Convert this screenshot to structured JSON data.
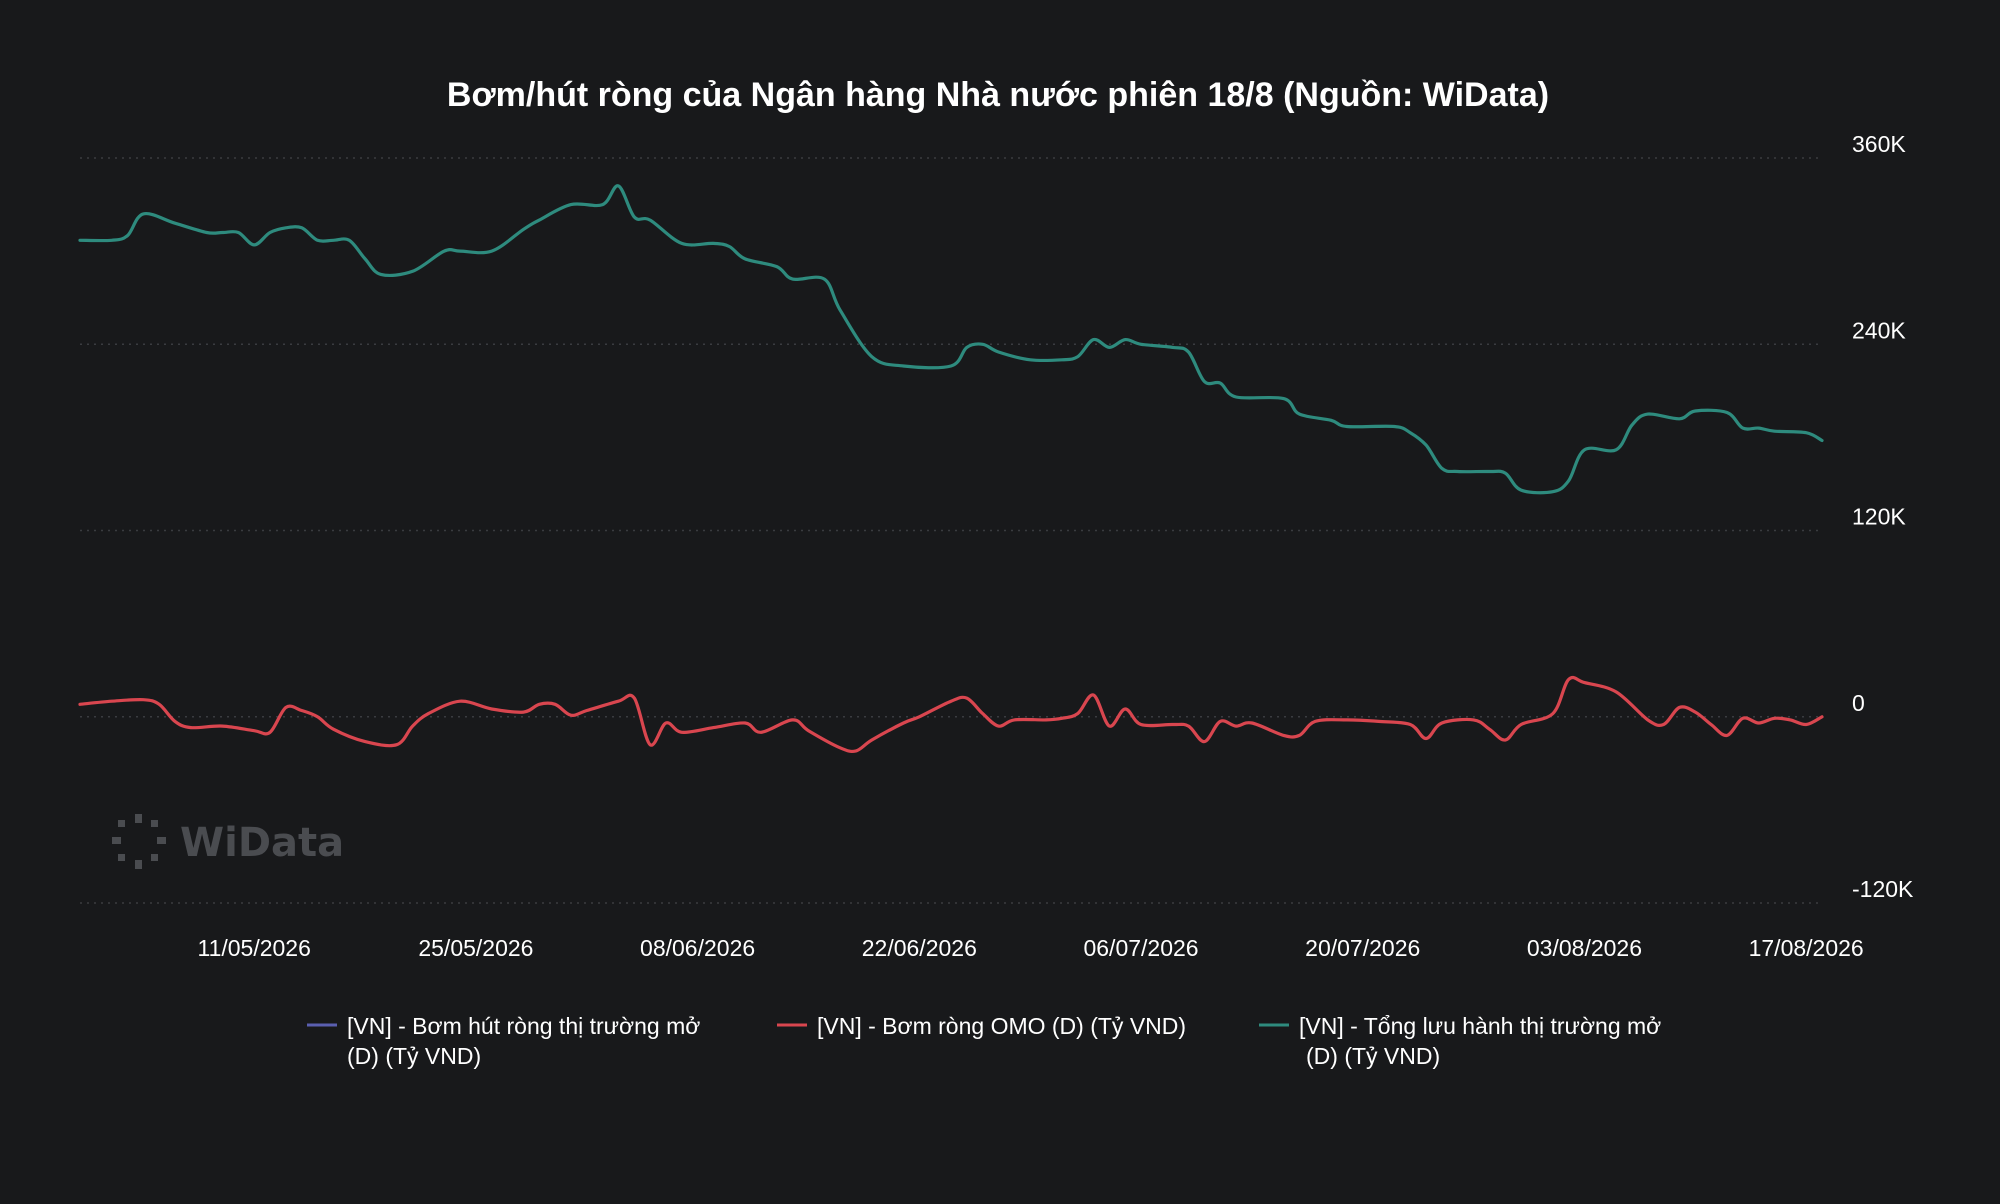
{
  "chart_data": {
    "type": "line",
    "title": "Bơm/hút ròng của Ngân hàng Nhà nước phiên 18/8 (Nguồn: WiData)",
    "xlabel": "",
    "ylabel": "",
    "x_range": [
      "2026-04-30",
      "2026-08-18"
    ],
    "ylim": [
      -120000,
      360000
    ],
    "y_ticks": [
      {
        "value": 360000,
        "label": "360K"
      },
      {
        "value": 240000,
        "label": "240K"
      },
      {
        "value": 120000,
        "label": "120K"
      },
      {
        "value": 0,
        "label": "0"
      },
      {
        "value": -120000,
        "label": "-120K"
      }
    ],
    "x_ticks": [
      {
        "date": "2026-05-11",
        "label": "11/05/2026"
      },
      {
        "date": "2026-05-25",
        "label": "25/05/2026"
      },
      {
        "date": "2026-06-08",
        "label": "08/06/2026"
      },
      {
        "date": "2026-06-22",
        "label": "22/06/2026"
      },
      {
        "date": "2026-07-06",
        "label": "06/07/2026"
      },
      {
        "date": "2026-07-20",
        "label": "20/07/2026"
      },
      {
        "date": "2026-08-03",
        "label": "03/08/2026"
      },
      {
        "date": "2026-08-17",
        "label": "17/08/2026"
      }
    ],
    "grid": "horizontal dotted",
    "legend_position": "bottom",
    "series": [
      {
        "name": "[VN] - Bơm hút ròng thị trường mở (D) (Tỷ VND)",
        "color": "#5a5fb0",
        "points": []
      },
      {
        "name": "[VN] - Bơm ròng OMO (D) (Tỷ VND)",
        "color": "#d9464f",
        "points": [
          [
            "2026-04-30",
            8000
          ],
          [
            "2026-05-02",
            10000
          ],
          [
            "2026-05-04",
            11000
          ],
          [
            "2026-05-05",
            8000
          ],
          [
            "2026-05-06",
            -3000
          ],
          [
            "2026-05-07",
            -7000
          ],
          [
            "2026-05-09",
            -6000
          ],
          [
            "2026-05-11",
            -9000
          ],
          [
            "2026-05-12",
            -10000
          ],
          [
            "2026-05-13",
            6000
          ],
          [
            "2026-05-14",
            4000
          ],
          [
            "2026-05-15",
            0
          ],
          [
            "2026-05-16",
            -8000
          ],
          [
            "2026-05-18",
            -16000
          ],
          [
            "2026-05-20",
            -18000
          ],
          [
            "2026-05-21",
            -6000
          ],
          [
            "2026-05-22",
            2000
          ],
          [
            "2026-05-24",
            10000
          ],
          [
            "2026-05-26",
            5000
          ],
          [
            "2026-05-28",
            3000
          ],
          [
            "2026-05-29",
            8000
          ],
          [
            "2026-05-30",
            8000
          ],
          [
            "2026-05-31",
            1000
          ],
          [
            "2026-06-01",
            4000
          ],
          [
            "2026-06-03",
            10000
          ],
          [
            "2026-06-04",
            12000
          ],
          [
            "2026-06-05",
            -18000
          ],
          [
            "2026-06-06",
            -4000
          ],
          [
            "2026-06-07",
            -10000
          ],
          [
            "2026-06-09",
            -7000
          ],
          [
            "2026-06-11",
            -4000
          ],
          [
            "2026-06-12",
            -10000
          ],
          [
            "2026-06-14",
            -2000
          ],
          [
            "2026-06-15",
            -9000
          ],
          [
            "2026-06-17",
            -20000
          ],
          [
            "2026-06-18",
            -22000
          ],
          [
            "2026-06-19",
            -15000
          ],
          [
            "2026-06-21",
            -4000
          ],
          [
            "2026-06-22",
            0
          ],
          [
            "2026-06-24",
            10000
          ],
          [
            "2026-06-25",
            12000
          ],
          [
            "2026-06-26",
            2000
          ],
          [
            "2026-06-27",
            -6000
          ],
          [
            "2026-06-28",
            -2000
          ],
          [
            "2026-06-30",
            -2000
          ],
          [
            "2026-07-01",
            -1000
          ],
          [
            "2026-07-02",
            2000
          ],
          [
            "2026-07-03",
            14000
          ],
          [
            "2026-07-04",
            -6000
          ],
          [
            "2026-07-05",
            5000
          ],
          [
            "2026-07-06",
            -5000
          ],
          [
            "2026-07-08",
            -5000
          ],
          [
            "2026-07-09",
            -6000
          ],
          [
            "2026-07-10",
            -16000
          ],
          [
            "2026-07-11",
            -3000
          ],
          [
            "2026-07-12",
            -6000
          ],
          [
            "2026-07-13",
            -4000
          ],
          [
            "2026-07-15",
            -12000
          ],
          [
            "2026-07-16",
            -12000
          ],
          [
            "2026-07-17",
            -3000
          ],
          [
            "2026-07-19",
            -2000
          ],
          [
            "2026-07-21",
            -3000
          ],
          [
            "2026-07-23",
            -5000
          ],
          [
            "2026-07-24",
            -14000
          ],
          [
            "2026-07-25",
            -4000
          ],
          [
            "2026-07-27",
            -2000
          ],
          [
            "2026-07-28",
            -8000
          ],
          [
            "2026-07-29",
            -15000
          ],
          [
            "2026-07-30",
            -5000
          ],
          [
            "2026-08-01",
            2000
          ],
          [
            "2026-08-02",
            24000
          ],
          [
            "2026-08-03",
            22000
          ],
          [
            "2026-08-05",
            16000
          ],
          [
            "2026-08-07",
            -2000
          ],
          [
            "2026-08-08",
            -5000
          ],
          [
            "2026-08-09",
            6000
          ],
          [
            "2026-08-10",
            3000
          ],
          [
            "2026-08-11",
            -5000
          ],
          [
            "2026-08-12",
            -12000
          ],
          [
            "2026-08-13",
            -1000
          ],
          [
            "2026-08-14",
            -4000
          ],
          [
            "2026-08-15",
            -1000
          ],
          [
            "2026-08-16",
            -2000
          ],
          [
            "2026-08-17",
            -5000
          ],
          [
            "2026-08-18",
            0
          ]
        ]
      },
      {
        "name": "[VN] - Tổng lưu hành thị trường mở (D) (Tỷ VND)",
        "color": "#2e8b7e",
        "points": [
          [
            "2026-04-30",
            307000
          ],
          [
            "2026-05-02",
            307000
          ],
          [
            "2026-05-03",
            310000
          ],
          [
            "2026-05-04",
            324000
          ],
          [
            "2026-05-06",
            318000
          ],
          [
            "2026-05-08",
            312000
          ],
          [
            "2026-05-09",
            312000
          ],
          [
            "2026-05-10",
            312000
          ],
          [
            "2026-05-11",
            304000
          ],
          [
            "2026-05-12",
            312000
          ],
          [
            "2026-05-13",
            315000
          ],
          [
            "2026-05-14",
            315000
          ],
          [
            "2026-05-15",
            307000
          ],
          [
            "2026-05-16",
            307000
          ],
          [
            "2026-05-17",
            307000
          ],
          [
            "2026-05-18",
            295000
          ],
          [
            "2026-05-19",
            285000
          ],
          [
            "2026-05-21",
            287000
          ],
          [
            "2026-05-23",
            300000
          ],
          [
            "2026-05-24",
            300000
          ],
          [
            "2026-05-26",
            300000
          ],
          [
            "2026-05-28",
            314000
          ],
          [
            "2026-05-29",
            320000
          ],
          [
            "2026-05-31",
            330000
          ],
          [
            "2026-06-02",
            330000
          ],
          [
            "2026-06-03",
            342000
          ],
          [
            "2026-06-04",
            322000
          ],
          [
            "2026-06-05",
            320000
          ],
          [
            "2026-06-07",
            305000
          ],
          [
            "2026-06-09",
            305000
          ],
          [
            "2026-06-10",
            303000
          ],
          [
            "2026-06-11",
            295000
          ],
          [
            "2026-06-13",
            290000
          ],
          [
            "2026-06-14",
            282000
          ],
          [
            "2026-06-16",
            282000
          ],
          [
            "2026-06-17",
            262000
          ],
          [
            "2026-06-19",
            232000
          ],
          [
            "2026-06-21",
            226000
          ],
          [
            "2026-06-24",
            226000
          ],
          [
            "2026-06-25",
            238000
          ],
          [
            "2026-06-26",
            240000
          ],
          [
            "2026-06-27",
            235000
          ],
          [
            "2026-06-29",
            230000
          ],
          [
            "2026-07-01",
            230000
          ],
          [
            "2026-07-02",
            232000
          ],
          [
            "2026-07-03",
            243000
          ],
          [
            "2026-07-04",
            238000
          ],
          [
            "2026-07-05",
            243000
          ],
          [
            "2026-07-06",
            240000
          ],
          [
            "2026-07-08",
            238000
          ],
          [
            "2026-07-09",
            235000
          ],
          [
            "2026-07-10",
            216000
          ],
          [
            "2026-07-11",
            215000
          ],
          [
            "2026-07-12",
            206000
          ],
          [
            "2026-07-15",
            205000
          ],
          [
            "2026-07-16",
            195000
          ],
          [
            "2026-07-18",
            191000
          ],
          [
            "2026-07-19",
            187000
          ],
          [
            "2026-07-22",
            187000
          ],
          [
            "2026-07-23",
            183000
          ],
          [
            "2026-07-24",
            175000
          ],
          [
            "2026-07-25",
            160000
          ],
          [
            "2026-07-26",
            158000
          ],
          [
            "2026-07-28",
            158000
          ],
          [
            "2026-07-29",
            157000
          ],
          [
            "2026-07-30",
            146000
          ],
          [
            "2026-08-01",
            145000
          ],
          [
            "2026-08-02",
            152000
          ],
          [
            "2026-08-03",
            172000
          ],
          [
            "2026-08-05",
            172000
          ],
          [
            "2026-08-06",
            188000
          ],
          [
            "2026-08-07",
            195000
          ],
          [
            "2026-08-09",
            192000
          ],
          [
            "2026-08-10",
            197000
          ],
          [
            "2026-08-12",
            196000
          ],
          [
            "2026-08-13",
            186000
          ],
          [
            "2026-08-14",
            186000
          ],
          [
            "2026-08-15",
            184000
          ],
          [
            "2026-08-17",
            183000
          ],
          [
            "2026-08-18",
            178000
          ]
        ]
      }
    ]
  },
  "watermark": {
    "text": "WiData",
    "icon": "widata-dots-icon"
  }
}
